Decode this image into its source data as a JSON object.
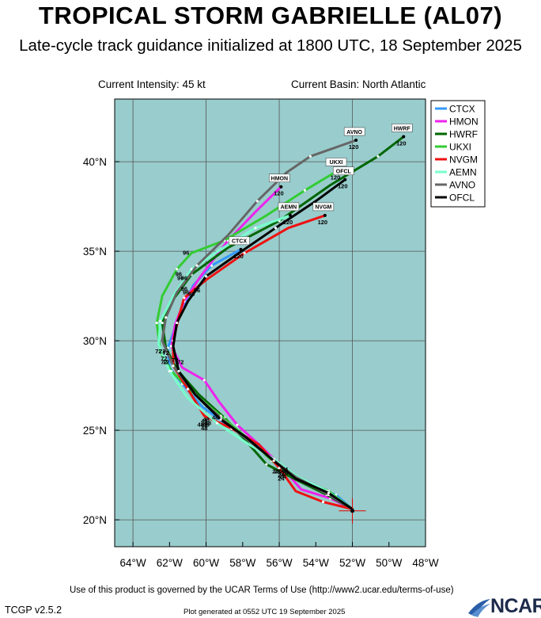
{
  "header": {
    "title": "TROPICAL STORM GABRIELLE (AL07)",
    "subtitle": "Late-cycle track guidance initialized at 1800 UTC, 18 September 2025",
    "current_intensity": "Current Intensity: 45 kt",
    "current_basin": "Current Basin: North Atlantic"
  },
  "footer": {
    "terms": "Use of this product is governed by the UCAR Terms of Use (http://www2.ucar.edu/terms-of-use)",
    "version": "TCGP v2.5.2",
    "generated": "Plot generated at 0552 UTC   19 September 2025",
    "logo_text": "NCAR"
  },
  "chart_data": {
    "type": "line",
    "title": "TROPICAL STORM GABRIELLE (AL07)",
    "xlim": [
      -65,
      -48
    ],
    "ylim": [
      18.5,
      43.5
    ],
    "x_ticks": [
      -64,
      -62,
      -60,
      -58,
      -56,
      -54,
      -52,
      -50,
      -48
    ],
    "x_tick_labels": [
      "64°W",
      "62°W",
      "60°W",
      "58°W",
      "56°W",
      "54°W",
      "52°W",
      "50°W",
      "48°W"
    ],
    "y_ticks": [
      20,
      25,
      30,
      35,
      40
    ],
    "y_tick_labels": [
      "20°N",
      "25°N",
      "30°N",
      "35°N",
      "40°N"
    ],
    "grid": true,
    "ocean_color": "#99cccc",
    "land_color": "#ffffff",
    "legend_position": "top-right",
    "initial_position": {
      "lon": -52.0,
      "lat": 20.5
    },
    "series": [
      {
        "name": "CTCX",
        "color": "#3399ff",
        "end_label": "CTCX",
        "hour_label": "120",
        "points": [
          [
            -52.0,
            20.6
          ],
          [
            -52.9,
            21.4
          ],
          [
            -54.4,
            21.9
          ],
          [
            -55.8,
            22.7
          ],
          [
            -57.2,
            24.2
          ],
          [
            -58.7,
            25.2
          ],
          [
            -60.2,
            26.3
          ],
          [
            -61.3,
            27.6
          ],
          [
            -62.0,
            28.5
          ],
          [
            -62.1,
            29.6
          ],
          [
            -61.7,
            30.7
          ],
          [
            -61.3,
            31.8
          ],
          [
            -60.7,
            33.1
          ],
          [
            -59.7,
            34.2
          ],
          [
            -58.1,
            35.1
          ]
        ],
        "hour_marks": [
          {
            "h": "24",
            "lon": -55.9,
            "lat": 22.4
          },
          {
            "h": "48",
            "lon": -60.1,
            "lat": 25.2
          },
          {
            "h": "72",
            "lon": -62.4,
            "lat": 29.3
          },
          {
            "h": "96",
            "lon": -61.1,
            "lat": 32.6
          }
        ]
      },
      {
        "name": "HMON",
        "color": "#ee22ee",
        "end_label": "HMON",
        "hour_label": "120",
        "points": [
          [
            -52.0,
            20.6
          ],
          [
            -53.2,
            21.2
          ],
          [
            -54.8,
            21.7
          ],
          [
            -56.0,
            23.1
          ],
          [
            -57.1,
            24.2
          ],
          [
            -58.3,
            25.3
          ],
          [
            -59.3,
            26.6
          ],
          [
            -60.1,
            27.8
          ],
          [
            -61.3,
            28.5
          ],
          [
            -61.9,
            29.7
          ],
          [
            -61.7,
            30.9
          ],
          [
            -61.2,
            32.2
          ],
          [
            -60.3,
            33.6
          ],
          [
            -58.8,
            35.6
          ],
          [
            -57.3,
            37.2
          ],
          [
            -55.9,
            38.6
          ]
        ],
        "hour_marks": [
          {
            "h": "24",
            "lon": -56.1,
            "lat": 22.6
          },
          {
            "h": "48",
            "lon": -59.5,
            "lat": 25.6
          },
          {
            "h": "72",
            "lon": -61.4,
            "lat": 28.7
          },
          {
            "h": "96",
            "lon": -60.8,
            "lat": 32.5
          }
        ]
      },
      {
        "name": "HWRF",
        "color": "#006600",
        "end_label": "HWRF",
        "hour_label": "120",
        "points": [
          [
            -52.0,
            20.6
          ],
          [
            -53.4,
            21.4
          ],
          [
            -55.2,
            22.3
          ],
          [
            -56.7,
            23.1
          ],
          [
            -57.9,
            24.5
          ],
          [
            -59.0,
            25.7
          ],
          [
            -60.4,
            27.0
          ],
          [
            -61.6,
            28.4
          ],
          [
            -62.2,
            29.6
          ],
          [
            -62.4,
            31.0
          ],
          [
            -61.8,
            32.3
          ],
          [
            -60.8,
            33.7
          ],
          [
            -58.8,
            35.2
          ],
          [
            -56.0,
            36.7
          ],
          [
            -53.2,
            38.7
          ],
          [
            -50.6,
            40.3
          ],
          [
            -49.2,
            41.4
          ]
        ],
        "hour_marks": [
          {
            "h": "24",
            "lon": -56.2,
            "lat": 22.6
          },
          {
            "h": "48",
            "lon": -60.0,
            "lat": 25.5
          },
          {
            "h": "72",
            "lon": -62.3,
            "lat": 28.7
          },
          {
            "h": "96",
            "lon": -61.5,
            "lat": 33.6
          }
        ]
      },
      {
        "name": "UKXI",
        "color": "#33cc33",
        "end_label": "UKXI",
        "hour_label": "120",
        "points": [
          [
            -52.0,
            20.6
          ],
          [
            -53.3,
            21.6
          ],
          [
            -55.1,
            22.3
          ],
          [
            -56.4,
            23.3
          ],
          [
            -57.8,
            24.6
          ],
          [
            -59.2,
            25.8
          ],
          [
            -60.6,
            27.0
          ],
          [
            -61.9,
            28.3
          ],
          [
            -62.5,
            29.4
          ],
          [
            -62.7,
            31.0
          ],
          [
            -62.4,
            32.5
          ],
          [
            -61.6,
            34.0
          ],
          [
            -60.8,
            34.9
          ],
          [
            -59.0,
            35.6
          ],
          [
            -56.7,
            37.0
          ],
          [
            -54.6,
            38.4
          ],
          [
            -52.8,
            39.5
          ]
        ],
        "hour_marks": [
          {
            "h": "24",
            "lon": -55.7,
            "lat": 22.7
          },
          {
            "h": "48",
            "lon": -60.1,
            "lat": 25.4
          },
          {
            "h": "72",
            "lon": -62.2,
            "lat": 29.2
          },
          {
            "h": "96",
            "lon": -61.1,
            "lat": 34.8
          }
        ]
      },
      {
        "name": "NVGM",
        "color": "#ee1111",
        "end_label": "NVGM",
        "hour_label": "120",
        "points": [
          [
            -52.0,
            20.6
          ],
          [
            -53.6,
            21.0
          ],
          [
            -55.1,
            21.6
          ],
          [
            -56.0,
            22.9
          ],
          [
            -57.1,
            24.2
          ],
          [
            -58.6,
            25.1
          ],
          [
            -60.1,
            25.8
          ],
          [
            -61.0,
            27.3
          ],
          [
            -61.8,
            28.6
          ],
          [
            -61.8,
            30.0
          ],
          [
            -61.5,
            31.3
          ],
          [
            -61.2,
            32.4
          ],
          [
            -60.0,
            33.4
          ],
          [
            -57.9,
            34.9
          ],
          [
            -55.5,
            36.3
          ],
          [
            -53.5,
            37.0
          ]
        ],
        "hour_marks": [
          {
            "h": "24",
            "lon": -55.9,
            "lat": 22.2
          },
          {
            "h": "48",
            "lon": -60.1,
            "lat": 25.0
          },
          {
            "h": "72",
            "lon": -61.7,
            "lat": 28.8
          },
          {
            "h": "96",
            "lon": -60.5,
            "lat": 32.7
          }
        ]
      },
      {
        "name": "AEMN",
        "color": "#77ffcc",
        "end_label": "AEMN",
        "hour_label": "120",
        "points": [
          [
            -52.0,
            20.6
          ],
          [
            -53.4,
            21.6
          ],
          [
            -55.0,
            22.4
          ],
          [
            -56.3,
            23.4
          ],
          [
            -57.8,
            24.3
          ],
          [
            -59.4,
            25.4
          ],
          [
            -61.0,
            26.8
          ],
          [
            -62.0,
            28.3
          ],
          [
            -62.6,
            29.8
          ],
          [
            -62.5,
            31.1
          ],
          [
            -61.8,
            32.5
          ],
          [
            -60.8,
            34.0
          ],
          [
            -59.2,
            35.1
          ],
          [
            -57.3,
            36.3
          ],
          [
            -55.4,
            37.0
          ]
        ],
        "hour_marks": [
          {
            "h": "24",
            "lon": -55.7,
            "lat": 22.5
          },
          {
            "h": "48",
            "lon": -60.0,
            "lat": 25.2
          },
          {
            "h": "72",
            "lon": -62.3,
            "lat": 28.9
          },
          {
            "h": "96",
            "lon": -61.2,
            "lat": 32.8
          }
        ]
      },
      {
        "name": "AVNO",
        "color": "#666666",
        "end_label": "AVNO",
        "hour_label": "120",
        "points": [
          [
            -52.0,
            20.6
          ],
          [
            -53.3,
            21.4
          ],
          [
            -55.1,
            22.4
          ],
          [
            -56.4,
            23.4
          ],
          [
            -57.9,
            24.6
          ],
          [
            -59.2,
            25.7
          ],
          [
            -60.6,
            27.0
          ],
          [
            -61.8,
            28.6
          ],
          [
            -62.4,
            30.0
          ],
          [
            -62.2,
            31.3
          ],
          [
            -61.6,
            32.7
          ],
          [
            -60.5,
            34.2
          ],
          [
            -58.8,
            35.9
          ],
          [
            -57.2,
            37.8
          ],
          [
            -55.6,
            39.4
          ],
          [
            -54.3,
            40.3
          ],
          [
            -51.8,
            41.2
          ]
        ],
        "hour_marks": [
          {
            "h": "24",
            "lon": -55.8,
            "lat": 22.6
          },
          {
            "h": "48",
            "lon": -59.9,
            "lat": 25.3
          },
          {
            "h": "72",
            "lon": -62.6,
            "lat": 29.3
          },
          {
            "h": "96",
            "lon": -61.4,
            "lat": 33.4
          }
        ]
      },
      {
        "name": "OFCL",
        "color": "#000000",
        "end_label": "OFCL",
        "hour_label": "120",
        "points": [
          [
            -52.0,
            20.6
          ],
          [
            -53.3,
            21.5
          ],
          [
            -55.1,
            22.3
          ],
          [
            -56.3,
            23.3
          ],
          [
            -57.8,
            24.6
          ],
          [
            -59.2,
            25.6
          ],
          [
            -60.6,
            27.0
          ],
          [
            -61.5,
            28.3
          ],
          [
            -61.8,
            29.7
          ],
          [
            -61.6,
            31.0
          ],
          [
            -61.0,
            32.2
          ],
          [
            -60.0,
            33.6
          ],
          [
            -58.2,
            34.9
          ],
          [
            -56.2,
            36.3
          ],
          [
            -54.0,
            37.8
          ],
          [
            -52.4,
            39.0
          ]
        ],
        "hour_marks": [
          {
            "h": "24",
            "lon": -55.8,
            "lat": 22.3
          },
          {
            "h": "48",
            "lon": -60.3,
            "lat": 25.2
          },
          {
            "h": "72",
            "lon": -62.2,
            "lat": 28.7
          },
          {
            "h": "96",
            "lon": -61.2,
            "lat": 33.4
          }
        ]
      }
    ]
  }
}
